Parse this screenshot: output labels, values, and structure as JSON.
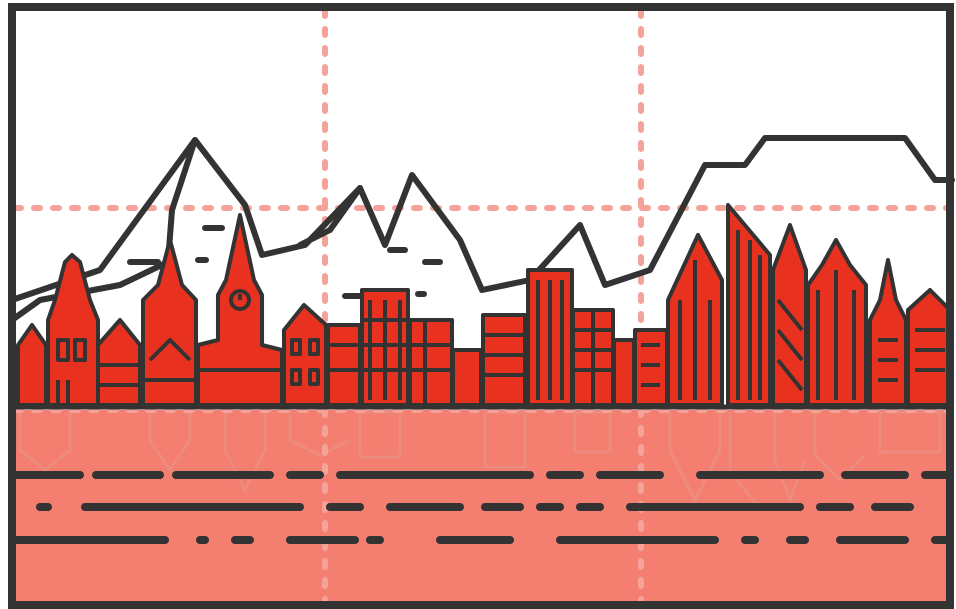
{
  "colors": {
    "background": "#ffffff",
    "frame": "#333333",
    "outline": "#333333",
    "building_red": "#e8321f",
    "grid_pink": "#f5a39a",
    "water": "#f47e70",
    "reflection": "#e8968a"
  },
  "illustration": {
    "subject": "city-skyline-with-mountains-and-water-reflection",
    "icons": [
      "mountain-range-icon",
      "old-town-buildings-icon",
      "clock-tower-icon",
      "cathedral-icon",
      "apartment-block-icon",
      "modern-skyscraper-icon",
      "water-waves-icon"
    ]
  }
}
